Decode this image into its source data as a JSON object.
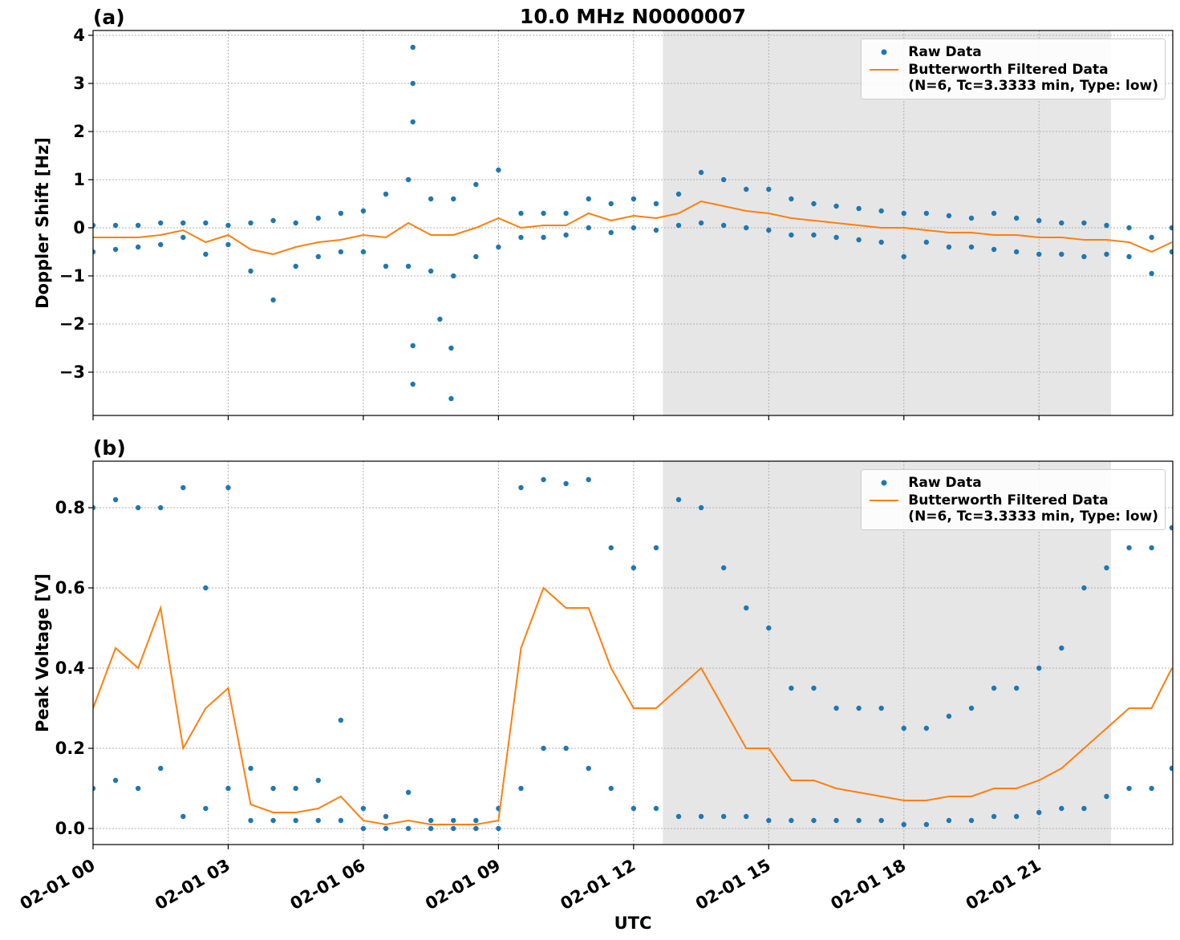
{
  "chart_data": [
    {
      "type": "scatter",
      "title": "10.0 MHz N0000007",
      "panel_label": "(a)",
      "ylabel": "Doppler Shift [Hz]",
      "xlim": [
        0,
        23.97
      ],
      "xticks": [
        0,
        3,
        6,
        9,
        12,
        15,
        18,
        21
      ],
      "ylim": [
        -3.9,
        4.1
      ],
      "yticks": [
        {
          "value": -3,
          "label": "−3"
        },
        {
          "value": -2,
          "label": "−2"
        },
        {
          "value": -1,
          "label": "−1"
        },
        0,
        1,
        2,
        3,
        4
      ],
      "grid": true,
      "legend": "upper right",
      "shaded_span": [
        12.65,
        22.6
      ],
      "shade_color": "#e6e6e6",
      "series": [
        {
          "name": "Raw Data",
          "type": "scatter",
          "color": "#1f77b4",
          "x": [
            0,
            0,
            0.5,
            0.5,
            1,
            1,
            1.5,
            1.5,
            2,
            2,
            2.5,
            2.5,
            3,
            3,
            3.5,
            3.5,
            4,
            4,
            4.5,
            4.5,
            5,
            5,
            5.5,
            5.5,
            6,
            6,
            6.5,
            6.5,
            7,
            7,
            7.5,
            7.5,
            8,
            8,
            8.5,
            8.5,
            9,
            9,
            9.5,
            9.5,
            10,
            10,
            10.5,
            10.5,
            11,
            11,
            11.5,
            11.5,
            12,
            12,
            12.5,
            12.5,
            13,
            13,
            13.5,
            13.5,
            14,
            14,
            14.5,
            14.5,
            15,
            15,
            15.5,
            15.5,
            16,
            16,
            16.5,
            16.5,
            17,
            17,
            17.5,
            17.5,
            18,
            18,
            18.5,
            18.5,
            19,
            19,
            19.5,
            19.5,
            20,
            20,
            20.5,
            20.5,
            21,
            21,
            21.5,
            21.5,
            22,
            22,
            22.5,
            22.5,
            23,
            23,
            23.5,
            23.5,
            23.95,
            23.95,
            7.1,
            7.1,
            7.1,
            7.1,
            7.1,
            7.95,
            7.95,
            7.7
          ],
          "values": [
            0.05,
            -0.5,
            0.05,
            -0.45,
            0.05,
            -0.4,
            0.1,
            -0.35,
            0.1,
            -0.2,
            0.1,
            -0.55,
            0.05,
            -0.35,
            0.1,
            -0.9,
            0.15,
            -1.5,
            0.1,
            -0.8,
            0.2,
            -0.6,
            0.3,
            -0.5,
            0.35,
            -0.5,
            0.7,
            -0.8,
            1.0,
            -0.8,
            0.6,
            -0.9,
            0.6,
            -1.0,
            0.9,
            -0.6,
            1.2,
            -0.4,
            0.3,
            -0.2,
            0.3,
            -0.2,
            0.3,
            -0.15,
            0.6,
            0.0,
            0.5,
            -0.1,
            0.6,
            0.0,
            0.5,
            -0.05,
            0.7,
            0.05,
            1.15,
            0.1,
            1.0,
            0.05,
            0.8,
            0.0,
            0.8,
            -0.05,
            0.6,
            -0.15,
            0.5,
            -0.15,
            0.45,
            -0.2,
            0.4,
            -0.25,
            0.35,
            -0.3,
            0.3,
            -0.6,
            0.3,
            -0.3,
            0.25,
            -0.4,
            0.2,
            -0.4,
            0.3,
            -0.45,
            0.2,
            -0.5,
            0.15,
            -0.55,
            0.1,
            -0.55,
            0.1,
            -0.6,
            0.05,
            -0.55,
            0.0,
            -0.6,
            -0.2,
            -0.95,
            0.0,
            -0.5,
            3.75,
            3.0,
            2.2,
            -3.25,
            -2.45,
            -3.55,
            -2.5,
            -1.9
          ]
        },
        {
          "name": "Butterworth Filtered Data\n(N=6, Tc=3.3333 min, Type: low)",
          "type": "line",
          "color": "#ff7f0e",
          "x": [
            0,
            0.5,
            1,
            1.5,
            2,
            2.5,
            3,
            3.5,
            4,
            4.5,
            5,
            5.5,
            6,
            6.5,
            7,
            7.5,
            8,
            8.5,
            9,
            9.5,
            10,
            10.5,
            11,
            11.5,
            12,
            12.5,
            13,
            13.5,
            14,
            14.5,
            15,
            15.5,
            16,
            16.5,
            17,
            17.5,
            18,
            18.5,
            19,
            19.5,
            20,
            20.5,
            21,
            21.5,
            22,
            22.5,
            23,
            23.5,
            23.95
          ],
          "values": [
            -0.2,
            -0.2,
            -0.2,
            -0.15,
            -0.05,
            -0.3,
            -0.15,
            -0.45,
            -0.55,
            -0.4,
            -0.3,
            -0.25,
            -0.15,
            -0.2,
            0.1,
            -0.15,
            -0.15,
            0.0,
            0.2,
            0.0,
            0.05,
            0.05,
            0.3,
            0.15,
            0.25,
            0.2,
            0.3,
            0.55,
            0.45,
            0.35,
            0.3,
            0.2,
            0.15,
            0.1,
            0.05,
            0.0,
            0.0,
            -0.05,
            -0.1,
            -0.1,
            -0.15,
            -0.15,
            -0.2,
            -0.2,
            -0.25,
            -0.25,
            -0.3,
            -0.5,
            -0.3
          ]
        }
      ]
    },
    {
      "type": "scatter",
      "panel_label": "(b)",
      "ylabel": "Peak Voltage [V]",
      "xlabel": "UTC",
      "xlim": [
        0,
        23.97
      ],
      "xticks": [
        {
          "value": 0,
          "label": "02-01 00"
        },
        {
          "value": 3,
          "label": "02-01 03"
        },
        {
          "value": 6,
          "label": "02-01 06"
        },
        {
          "value": 9,
          "label": "02-01 09"
        },
        {
          "value": 12,
          "label": "02-01 12"
        },
        {
          "value": 15,
          "label": "02-01 15"
        },
        {
          "value": 18,
          "label": "02-01 18"
        },
        {
          "value": 21,
          "label": "02-01 21"
        }
      ],
      "ylim": [
        -0.04,
        0.916
      ],
      "yticks": [
        {
          "value": 0,
          "label": "0.0"
        },
        0.2,
        0.4,
        0.6,
        0.8
      ],
      "grid": true,
      "legend": "upper right",
      "shaded_span": [
        12.65,
        22.6
      ],
      "shade_color": "#e6e6e6",
      "series": [
        {
          "name": "Raw Data",
          "type": "scatter",
          "color": "#1f77b4",
          "x": [
            0,
            0,
            0.5,
            0.5,
            1,
            1,
            1.5,
            1.5,
            2,
            2,
            2.5,
            2.5,
            3,
            3,
            3.5,
            3.5,
            4,
            4,
            4.5,
            4.5,
            5,
            5,
            5.5,
            5.5,
            6,
            6,
            6.5,
            6.5,
            7,
            7,
            7.5,
            7.5,
            8,
            8,
            8.5,
            8.5,
            9,
            9,
            9.5,
            9.5,
            10,
            10,
            10.5,
            10.5,
            11,
            11,
            11.5,
            11.5,
            12,
            12,
            12.5,
            12.5,
            13,
            13,
            13.5,
            13.5,
            14,
            14,
            14.5,
            14.5,
            15,
            15,
            15.5,
            15.5,
            16,
            16,
            16.5,
            16.5,
            17,
            17,
            17.5,
            17.5,
            18,
            18,
            18.5,
            18.5,
            19,
            19,
            19.5,
            19.5,
            20,
            20,
            20.5,
            20.5,
            21,
            21,
            21.5,
            21.5,
            22,
            22,
            22.5,
            22.5,
            23,
            23,
            23.5,
            23.5,
            23.95,
            23.95
          ],
          "values": [
            0.8,
            0.1,
            0.82,
            0.12,
            0.8,
            0.1,
            0.8,
            0.15,
            0.85,
            0.03,
            0.6,
            0.05,
            0.85,
            0.1,
            0.15,
            0.02,
            0.1,
            0.02,
            0.1,
            0.02,
            0.12,
            0.02,
            0.27,
            0.02,
            0.05,
            0.0,
            0.03,
            0.0,
            0.09,
            0.0,
            0.02,
            0.0,
            0.02,
            0.0,
            0.02,
            0.0,
            0.05,
            0.0,
            0.85,
            0.1,
            0.87,
            0.2,
            0.86,
            0.2,
            0.87,
            0.15,
            0.7,
            0.1,
            0.65,
            0.05,
            0.7,
            0.05,
            0.82,
            0.03,
            0.8,
            0.03,
            0.65,
            0.03,
            0.55,
            0.03,
            0.5,
            0.02,
            0.35,
            0.02,
            0.35,
            0.02,
            0.3,
            0.02,
            0.3,
            0.02,
            0.3,
            0.02,
            0.25,
            0.01,
            0.25,
            0.01,
            0.28,
            0.02,
            0.3,
            0.02,
            0.35,
            0.03,
            0.35,
            0.03,
            0.4,
            0.04,
            0.45,
            0.05,
            0.6,
            0.05,
            0.65,
            0.08,
            0.7,
            0.1,
            0.7,
            0.1,
            0.75,
            0.15
          ]
        },
        {
          "name": "Butterworth Filtered Data\n(N=6, Tc=3.3333 min, Type: low)",
          "type": "line",
          "color": "#ff7f0e",
          "x": [
            0,
            0.5,
            1,
            1.5,
            2,
            2.5,
            3,
            3.5,
            4,
            4.5,
            5,
            5.5,
            6,
            6.5,
            7,
            7.5,
            8,
            8.5,
            9,
            9.5,
            10,
            10.5,
            11,
            11.5,
            12,
            12.5,
            13,
            13.5,
            14,
            14.5,
            15,
            15.5,
            16,
            16.5,
            17,
            17.5,
            18,
            18.5,
            19,
            19.5,
            20,
            20.5,
            21,
            21.5,
            22,
            22.5,
            23,
            23.5,
            23.95
          ],
          "values": [
            0.3,
            0.45,
            0.4,
            0.55,
            0.2,
            0.3,
            0.35,
            0.06,
            0.04,
            0.04,
            0.05,
            0.08,
            0.02,
            0.01,
            0.02,
            0.01,
            0.01,
            0.01,
            0.02,
            0.45,
            0.6,
            0.55,
            0.55,
            0.4,
            0.3,
            0.3,
            0.35,
            0.4,
            0.3,
            0.2,
            0.2,
            0.12,
            0.12,
            0.1,
            0.09,
            0.08,
            0.07,
            0.07,
            0.08,
            0.08,
            0.1,
            0.1,
            0.12,
            0.15,
            0.2,
            0.25,
            0.3,
            0.3,
            0.4
          ]
        }
      ]
    }
  ]
}
